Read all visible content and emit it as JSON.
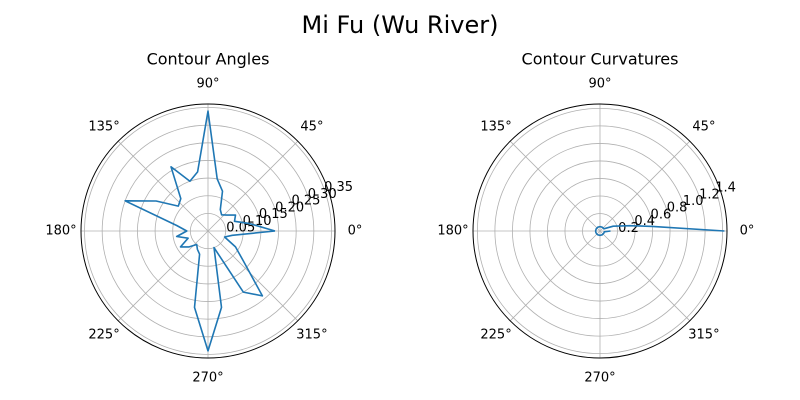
{
  "figure": {
    "title": "Mi Fu (Wu River)"
  },
  "chart_data": [
    {
      "type": "line",
      "projection": "polar",
      "title": "Contour Angles",
      "theta_ticks_deg": [
        0,
        45,
        90,
        135,
        180,
        225,
        270,
        315
      ],
      "theta_tick_labels": [
        "0°",
        "45°",
        "90°",
        "135°",
        "180°",
        "225°",
        "270°",
        "315°"
      ],
      "r_ticks": [
        0.05,
        0.1,
        0.15,
        0.2,
        0.25,
        0.3,
        0.35
      ],
      "r_tick_labels": [
        "0.05",
        "0.10",
        "0.15",
        "0.20",
        "0.25",
        "0.30",
        "0.35"
      ],
      "rlim": [
        0,
        0.36
      ],
      "grid": true,
      "color": "#1f77b4",
      "theta_deg": [
        0,
        10,
        20,
        30,
        40,
        50,
        60,
        70,
        80,
        90,
        100,
        110,
        120,
        130,
        140,
        150,
        160,
        170,
        180,
        190,
        200,
        210,
        220,
        230,
        240,
        250,
        260,
        270,
        280,
        290,
        300,
        310,
        320,
        330,
        340,
        350,
        360
      ],
      "r": [
        0.19,
        0.12,
        0.08,
        0.09,
        0.07,
        0.06,
        0.07,
        0.12,
        0.15,
        0.34,
        0.17,
        0.15,
        0.21,
        0.12,
        0.11,
        0.17,
        0.25,
        0.09,
        0.06,
        0.09,
        0.06,
        0.09,
        0.07,
        0.05,
        0.06,
        0.07,
        0.22,
        0.34,
        0.22,
        0.05,
        0.2,
        0.24,
        0.13,
        0.09,
        0.05,
        0.07,
        0.19
      ]
    },
    {
      "type": "line",
      "projection": "polar",
      "title": "Contour Curvatures",
      "theta_ticks_deg": [
        0,
        45,
        90,
        135,
        180,
        225,
        270,
        315
      ],
      "theta_tick_labels": [
        "0°",
        "45°",
        "90°",
        "135°",
        "180°",
        "225°",
        "270°",
        "315°"
      ],
      "r_ticks": [
        0.2,
        0.4,
        0.6,
        0.8,
        1.0,
        1.2,
        1.4
      ],
      "r_tick_labels": [
        "0.2",
        "0.4",
        "0.6",
        "0.8",
        "1.0",
        "1.2",
        "1.4"
      ],
      "rlim": [
        0,
        1.45
      ],
      "grid": true,
      "color": "#1f77b4",
      "theta_deg": [
        0,
        5,
        10,
        20,
        30,
        45,
        60,
        90,
        120,
        150,
        180,
        200,
        220,
        240,
        270,
        300,
        330,
        350,
        360
      ],
      "r": [
        1.42,
        0.6,
        0.35,
        0.16,
        0.05,
        0.05,
        0.05,
        0.05,
        0.05,
        0.05,
        0.05,
        0.05,
        0.05,
        0.05,
        0.05,
        0.05,
        0.05,
        0.05,
        0.12
      ]
    }
  ]
}
